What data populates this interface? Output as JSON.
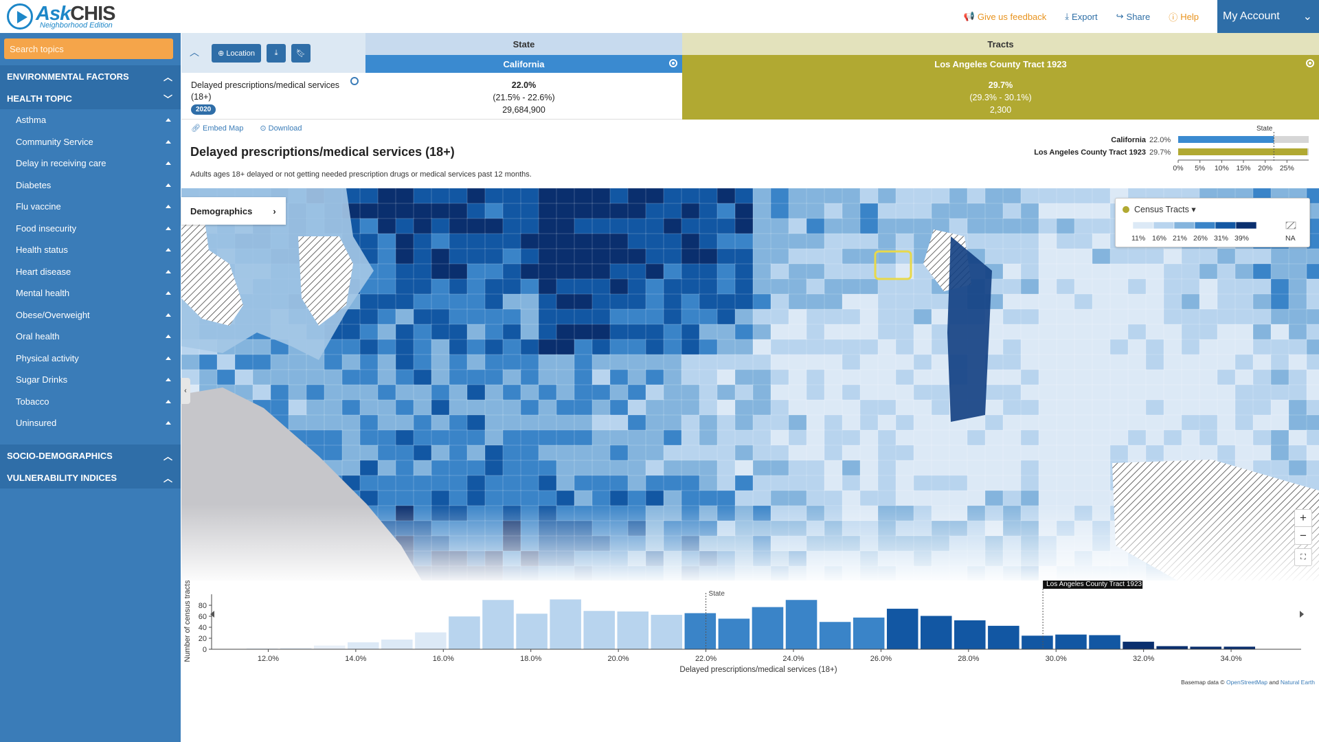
{
  "header": {
    "logo_ask": "Ask",
    "logo_chis": "CHIS",
    "logo_sub": "Neighborhood Edition",
    "nav": [
      {
        "label": "Give us feedback",
        "icon": "megaphone-icon"
      },
      {
        "label": "Export",
        "icon": "download-icon"
      },
      {
        "label": "Share",
        "icon": "share-icon"
      },
      {
        "label": "Help",
        "icon": "help-icon"
      }
    ],
    "account": "My Account"
  },
  "sidebar": {
    "search_placeholder": "Search topics",
    "sections": {
      "environmental": "ENVIRONMENTAL FACTORS",
      "health_topic": "HEALTH TOPIC",
      "socio": "SOCIO-DEMOGRAPHICS",
      "vulnerability": "VULNERABILITY INDICES"
    },
    "topics": [
      "Asthma",
      "Community Service",
      "Delay in receiving care",
      "Diabetes",
      "Flu vaccine",
      "Food insecurity",
      "Health status",
      "Heart disease",
      "Mental health",
      "Obese/Overweight",
      "Oral health",
      "Physical activity",
      "Sugar Drinks",
      "Tobacco",
      "Uninsured"
    ]
  },
  "table": {
    "location_btn": "Location",
    "state_header": "State",
    "tracts_header": "Tracts",
    "state_name": "California",
    "tract_name": "Los Angeles County Tract 1923",
    "indicator": "Delayed prescriptions/medical services (18+)",
    "year": "2020",
    "state_value": "22.0%",
    "state_ci": "(21.5% - 22.6%)",
    "state_pop": "29,684,900",
    "tract_value": "29.7%",
    "tract_ci": "(29.3% - 30.1%)",
    "tract_pop": "2,300"
  },
  "tools": {
    "embed": "Embed Map",
    "download": "Download"
  },
  "indicator_title": "Delayed prescriptions/medical services (18+)",
  "indicator_desc": "Adults ages 18+ delayed or not getting needed prescription drugs or medical services past 12 months.",
  "mini_chart": {
    "state_marker": "State",
    "rows": [
      {
        "name": "California",
        "value_label": "22.0%",
        "value": 22.0,
        "color": "#3a8ad0"
      },
      {
        "name": "Los Angeles County Tract 1923",
        "value_label": "29.7%",
        "value": 29.7,
        "color": "#b1a932"
      }
    ],
    "ticks": [
      "0%",
      "5%",
      "10%",
      "15%",
      "20%",
      "25%"
    ],
    "max": 30
  },
  "map": {
    "demographics_btn": "Demographics",
    "legend_title": "Census Tracts",
    "legend_labels": [
      "11%",
      "16%",
      "21%",
      "26%",
      "31%",
      "39%"
    ],
    "legend_na": "NA",
    "legend_colors": [
      "#dce9f6",
      "#b8d4ee",
      "#84b4dd",
      "#3a84c8",
      "#1257a3",
      "#0a2f6e"
    ],
    "zoom_in": "+",
    "zoom_out": "−"
  },
  "chart_data": {
    "type": "bar",
    "title": "",
    "xlabel": "Delayed prescriptions/medical services (18+)",
    "ylabel": "Number of census tracts",
    "x_ticks": [
      "12.0%",
      "14.0%",
      "16.0%",
      "18.0%",
      "20.0%",
      "22.0%",
      "24.0%",
      "26.0%",
      "28.0%",
      "30.0%",
      "32.0%",
      "34.0%"
    ],
    "y_ticks": [
      0,
      20,
      40,
      60,
      80
    ],
    "ylim": [
      0,
      90
    ],
    "xlim": [
      10.8,
      35.6
    ],
    "bin_width": 0.77,
    "bins_start": [
      11.5,
      12.27,
      13.04,
      13.81,
      14.58,
      15.35,
      16.12,
      16.89,
      17.66,
      18.43,
      19.2,
      19.97,
      20.74,
      21.51,
      22.28,
      23.05,
      23.82,
      24.59,
      25.36,
      26.13,
      26.9,
      27.67,
      28.44,
      29.21,
      29.98,
      30.75,
      31.52,
      32.29,
      33.06,
      33.83
    ],
    "values": [
      2,
      3,
      7,
      13,
      18,
      31,
      60,
      90,
      65,
      91,
      70,
      69,
      63,
      66,
      56,
      77,
      90,
      50,
      58,
      74,
      61,
      53,
      43,
      25,
      27,
      26,
      14,
      6,
      5,
      5
    ],
    "state_marker": {
      "label": "State",
      "x": 22.0
    },
    "tract_marker": {
      "label": "Los Angeles County Tract 1923",
      "x": 29.7
    },
    "basemap_prefix": "Basemap data ©",
    "basemap_osm": "OpenStreetMap",
    "basemap_and": "and",
    "basemap_ne": "Natural Earth"
  }
}
